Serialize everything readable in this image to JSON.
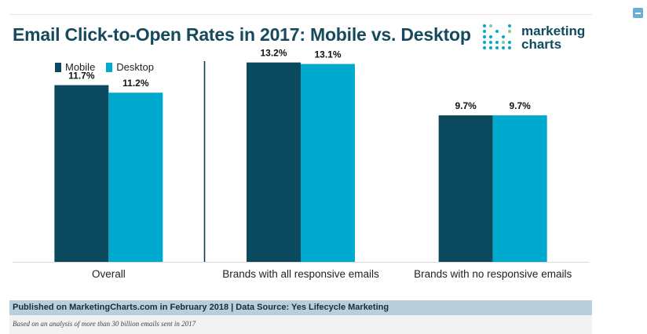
{
  "header": {
    "title": "Email Click-to-Open Rates in 2017: Mobile vs. Desktop",
    "logo_line1": "marketing",
    "logo_line2": "charts"
  },
  "colors": {
    "mobile": "#0b4a5e",
    "desktop": "#00a9ce",
    "title": "#16495c"
  },
  "chart_data": {
    "type": "bar",
    "title": "Email Click-to-Open Rates in 2017: Mobile vs. Desktop",
    "xlabel": "",
    "ylabel": "",
    "ylim": [
      0,
      15
    ],
    "grid": false,
    "legend_position": "top-left",
    "categories": [
      "Overall",
      "Brands with all responsive emails",
      "Brands with no responsive emails"
    ],
    "series": [
      {
        "name": "Mobile",
        "values": [
          11.7,
          13.2,
          9.7
        ],
        "labels": [
          "11.7%",
          "13.2%",
          "9.7%"
        ]
      },
      {
        "name": "Desktop",
        "values": [
          11.2,
          13.1,
          9.7
        ],
        "labels": [
          "11.2%",
          "13.1%",
          "9.7%"
        ]
      }
    ]
  },
  "footer": {
    "source": "Published on MarketingCharts.com in February 2018 | Data Source: Yes Lifecycle Marketing",
    "note": "Based on an analysis of more than 30 billion emails sent in 2017"
  }
}
